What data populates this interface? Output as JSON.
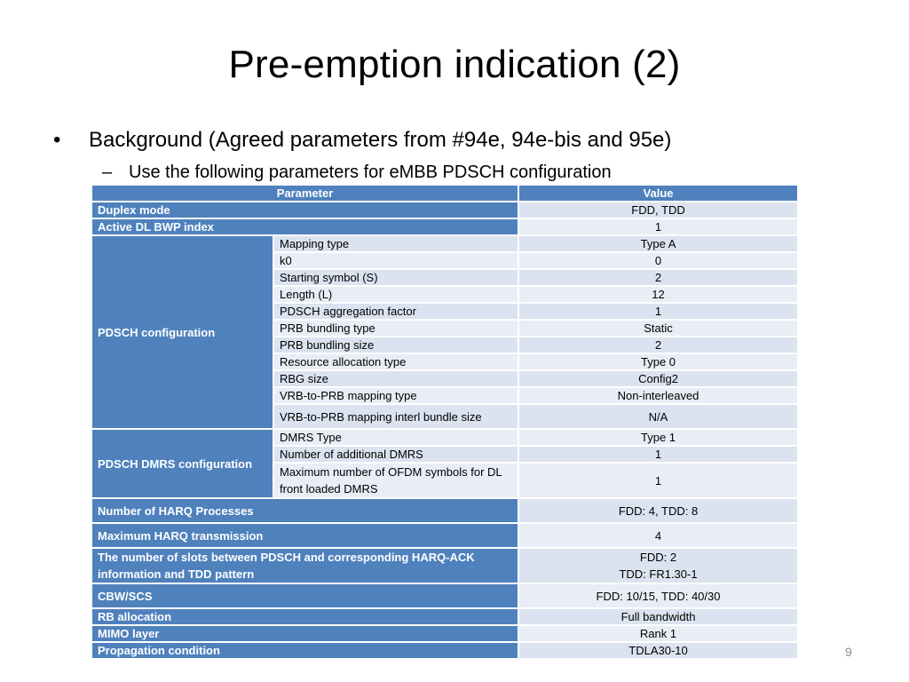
{
  "slide": {
    "title": "Pre-emption indication (2)",
    "bullet_char": "•",
    "bullet": "Background (Agreed parameters from #94e, 94e-bis and 95e)",
    "sub_bullet_char": "–",
    "sub_bullet": "Use the following parameters for eMBB PDSCH configuration",
    "page_number": "9"
  },
  "table": {
    "header": {
      "parameter": "Parameter",
      "value": "Value"
    },
    "duplex": {
      "name": "Duplex mode",
      "value": "FDD, TDD"
    },
    "bwp": {
      "name": "Active DL BWP index",
      "value": "1"
    },
    "pdsch": {
      "name": "PDSCH configuration",
      "rows": [
        {
          "label": "Mapping type",
          "value": "Type A"
        },
        {
          "label": "k0",
          "value": "0"
        },
        {
          "label": "Starting symbol (S)",
          "value": "2"
        },
        {
          "label": "Length (L)",
          "value": "12"
        },
        {
          "label": "PDSCH aggregation factor",
          "value": "1"
        },
        {
          "label": "PRB bundling type",
          "value": "Static"
        },
        {
          "label": "PRB bundling size",
          "value": "2"
        },
        {
          "label": "Resource allocation type",
          "value": "Type 0"
        },
        {
          "label": "RBG size",
          "value": "Config2"
        },
        {
          "label": "VRB-to-PRB mapping type",
          "value": "Non-interleaved"
        },
        {
          "label": "VRB-to-PRB mapping interl bundle size",
          "value": "N/A"
        }
      ]
    },
    "dmrs": {
      "name": "PDSCH DMRS configuration",
      "rows": [
        {
          "label": "DMRS Type",
          "value": "Type 1"
        },
        {
          "label": "Number of additional DMRS",
          "value": "1"
        },
        {
          "label": "Maximum number of OFDM symbols for DL front loaded DMRS",
          "value": "1"
        }
      ]
    },
    "harq_proc": {
      "name": "Number of HARQ Processes",
      "value": "FDD: 4, TDD: 8"
    },
    "harq_tx": {
      "name": "Maximum HARQ transmission",
      "value": "4"
    },
    "slots": {
      "name": "The number of slots between PDSCH and corresponding HARQ-ACK information and TDD pattern",
      "value_line1": "FDD: 2",
      "value_line2": "TDD: FR1.30-1"
    },
    "cbw": {
      "name": "CBW/SCS",
      "value": "FDD: 10/15, TDD: 40/30"
    },
    "rb": {
      "name": "RB allocation",
      "value": "Full bandwidth"
    },
    "mimo": {
      "name": "MIMO layer",
      "value": "Rank 1"
    },
    "prop": {
      "name": "Propagation condition",
      "value": "TDLA30-10"
    }
  }
}
